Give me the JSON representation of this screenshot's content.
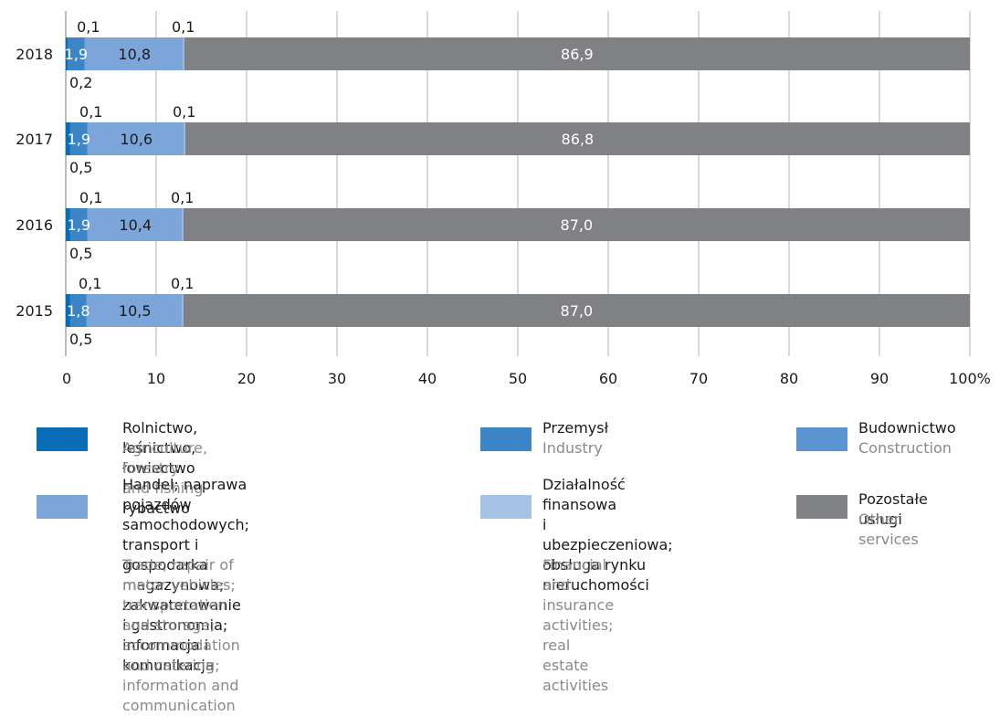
{
  "chart_data": {
    "type": "bar",
    "orientation": "horizontal",
    "stacked": true,
    "categories": [
      "2018",
      "2017",
      "2016",
      "2015"
    ],
    "series": [
      {
        "name": "Rolnictwo, leśnictwo, łowiectwo i rybactwo",
        "color": "#0a6cb5",
        "values": [
          0.2,
          0.5,
          0.5,
          0.5
        ],
        "labels": [
          "0,2",
          "0,5",
          "0,5",
          "0,5"
        ]
      },
      {
        "name": "Przemysł",
        "color": "#3c86c8",
        "values": [
          1.9,
          1.9,
          1.9,
          1.8
        ],
        "labels": [
          "1,9",
          "1,9",
          "1,9",
          "1,8"
        ]
      },
      {
        "name": "Budownictwo",
        "color": "#5b93d0",
        "values": [
          0.1,
          0.1,
          0.1,
          0.1
        ],
        "labels": [
          "0,1",
          "0,1",
          "0,1",
          "0,1"
        ]
      },
      {
        "name": "Handel; naprawa pojazdów samochodowych; transport i gospodarka magazynowa; zakwaterowanie i gastronomia; informacja i komunikacja",
        "color": "#7ca6da",
        "values": [
          10.8,
          10.6,
          10.4,
          10.5
        ],
        "labels": [
          "10,8",
          "10,6",
          "10,4",
          "10,5"
        ]
      },
      {
        "name": "Działalność finansowa i ubezpieczeniowa; obsługa rynku nieruchomości",
        "color": "#a6c3e6",
        "values": [
          0.1,
          0.1,
          0.1,
          0.1
        ],
        "labels": [
          "0,1",
          "0,1",
          "0,1",
          "0,1"
        ]
      },
      {
        "name": "Pozostałe usługi",
        "color": "#808184",
        "values": [
          86.9,
          86.8,
          87.0,
          87.0
        ],
        "labels": [
          "86,9",
          "86,8",
          "87,0",
          "87,0"
        ]
      }
    ],
    "x_ticks": [
      "0",
      "10",
      "20",
      "30",
      "40",
      "50",
      "60",
      "70",
      "80",
      "90",
      "100%"
    ],
    "xlim": [
      0,
      100
    ],
    "grid": "vertical",
    "legend_position": "bottom"
  },
  "legend": [
    {
      "pl": "Rolnictwo, leśnictwo, łowiectwo i rybactwo",
      "en": "Agriculture, forestry and fishing",
      "color": "#0a6cb5"
    },
    {
      "pl": "Przemysł",
      "en": "Industry",
      "color": "#3c86c8"
    },
    {
      "pl": "Budownictwo",
      "en": "Construction",
      "color": "#5b93d0"
    },
    {
      "pl": "Handel; naprawa pojazdów samochodowych;\ntransport i gospodarka magazynowa;\nzakwaterowanie i gastronomia;\ninformacja i komunikacja",
      "en": "Trade; repair of motor vehicles; transportation\nand storage; accommodation and catering;\ninformation and communication",
      "color": "#7ca6da"
    },
    {
      "pl": "Działalność finansowa\ni ubezpieczeniowa;\nobsługa rynku\nnieruchomości",
      "en": "Financial and insurance\nactivities; real estate activities",
      "color": "#a6c3e6"
    },
    {
      "pl": "Pozostałe usługi",
      "en": "Other services",
      "color": "#808184"
    }
  ]
}
